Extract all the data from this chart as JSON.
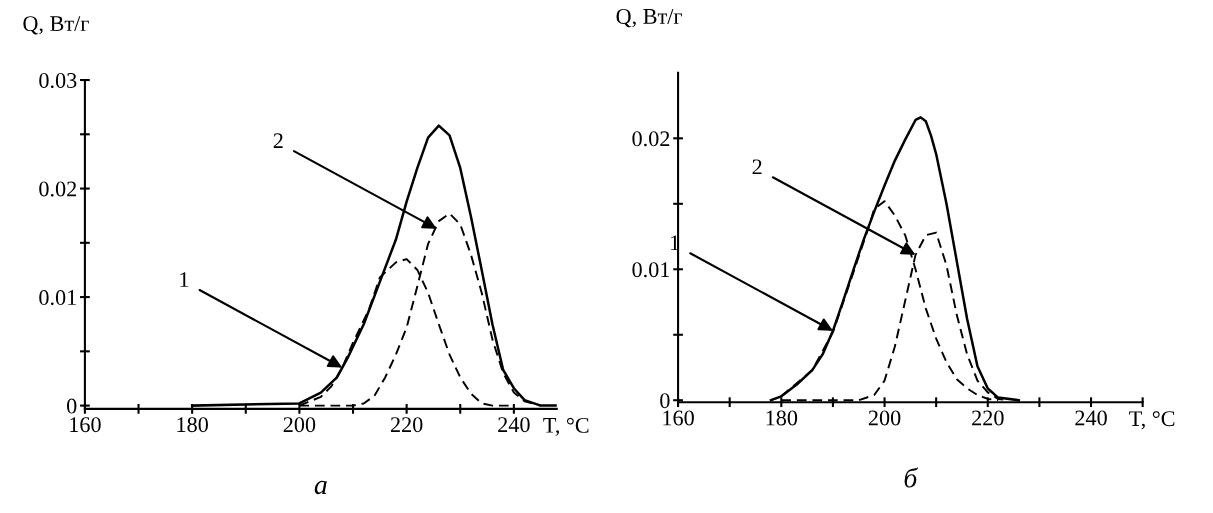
{
  "chart_data": [
    {
      "type": "line",
      "title": "а",
      "xlabel": "T, °C",
      "ylabel": "Q, Вт/г",
      "xlim": [
        160,
        248
      ],
      "xticks": [
        160,
        {
          "value": 170,
          "label": null
        },
        180,
        {
          "value": 190,
          "label": null
        },
        200,
        {
          "value": 210,
          "label": null
        },
        220,
        {
          "value": 230,
          "label": null
        },
        240
      ],
      "ylim": [
        -0.0003,
        0.03
      ],
      "yticks": [
        0,
        {
          "value": 0.005,
          "label": null
        },
        0.01,
        {
          "value": 0.015,
          "label": null
        },
        0.02,
        {
          "value": 0.025,
          "label": null
        },
        0.03
      ],
      "series": [
        {
          "color": "#000000",
          "line_style": "solid",
          "x": [
            180,
            200,
            204,
            207,
            209,
            212,
            215,
            218,
            220,
            222,
            224,
            226,
            228,
            230,
            232,
            234,
            236,
            238,
            240,
            242,
            245,
            248
          ],
          "values": [
            0,
            0.0002,
            0.0012,
            0.0026,
            0.0044,
            0.0075,
            0.0114,
            0.0153,
            0.0188,
            0.0219,
            0.0247,
            0.0258,
            0.0249,
            0.0219,
            0.0174,
            0.0125,
            0.0075,
            0.0033,
            0.0016,
            0.0005,
            0,
            0
          ]
        },
        {
          "color": "#000000",
          "line_style": "dashed",
          "x": [
            200,
            204,
            206,
            208,
            210,
            213,
            215,
            218,
            220,
            222,
            224,
            226,
            228,
            230,
            232,
            234,
            236,
            240
          ],
          "values": [
            0,
            0.0008,
            0.0018,
            0.0035,
            0.0058,
            0.0089,
            0.0118,
            0.0132,
            0.0135,
            0.0125,
            0.0104,
            0.0075,
            0.0047,
            0.0026,
            0.0011,
            0.0002,
            0,
            0
          ]
        },
        {
          "color": "#000000",
          "line_style": "dashed",
          "x": [
            200,
            210,
            212,
            214,
            216,
            218,
            220,
            222,
            224,
            226,
            228,
            230,
            232,
            234,
            236,
            238,
            240,
            242,
            245
          ],
          "values": [
            0,
            0,
            0.0002,
            0.0009,
            0.0026,
            0.0047,
            0.0072,
            0.011,
            0.0149,
            0.017,
            0.0177,
            0.0167,
            0.0139,
            0.0104,
            0.0061,
            0.003,
            0.0012,
            0.0004,
            0
          ]
        }
      ],
      "annotations": [
        {
          "text": "1",
          "x": 208,
          "y": 0.0035
        },
        {
          "text": "2",
          "x": 225.6,
          "y": 0.0163
        }
      ]
    },
    {
      "type": "line",
      "title": "б",
      "xlabel": "T, °C",
      "ylabel": "Q, Вт/г",
      "xlim": [
        160,
        250
      ],
      "xticks": [
        160,
        {
          "value": 170,
          "label": null
        },
        180,
        {
          "value": 190,
          "label": null
        },
        200,
        {
          "value": 210,
          "label": null
        },
        220,
        {
          "value": 230,
          "label": null
        },
        240,
        {
          "value": 250,
          "label": null
        }
      ],
      "ylim": [
        -0.00015,
        0.025
      ],
      "yticks": [
        0,
        {
          "value": 0.005,
          "label": null
        },
        0.01,
        {
          "value": 0.015,
          "label": null
        },
        0.02
      ],
      "series": [
        {
          "color": "#000000",
          "line_style": "solid",
          "x": [
            178,
            180,
            183,
            186,
            188,
            190,
            192,
            194,
            196,
            198,
            200,
            202,
            204,
            206,
            207,
            208,
            209,
            210,
            212,
            214,
            216,
            218,
            220,
            222,
            226
          ],
          "values": [
            0,
            0.0003,
            0.0012,
            0.0023,
            0.0035,
            0.0053,
            0.0076,
            0.01,
            0.0123,
            0.0144,
            0.0164,
            0.0183,
            0.0199,
            0.0214,
            0.0216,
            0.0213,
            0.0202,
            0.0188,
            0.015,
            0.0106,
            0.0062,
            0.0026,
            0.0009,
            0.0002,
            0
          ]
        },
        {
          "color": "#000000",
          "line_style": "dashed",
          "x": [
            180,
            186,
            190,
            194,
            197,
            198,
            200,
            202,
            204,
            206,
            208,
            210,
            212,
            214,
            216,
            218,
            220,
            222
          ],
          "values": [
            0.0003,
            0.0023,
            0.0052,
            0.0098,
            0.0133,
            0.0146,
            0.0152,
            0.0141,
            0.0126,
            0.01,
            0.007,
            0.0047,
            0.0029,
            0.0016,
            0.0009,
            0.0004,
            0.0001,
            0
          ]
        },
        {
          "color": "#000000",
          "line_style": "dashed",
          "x": [
            180,
            195,
            198,
            200,
            202,
            204,
            206,
            208,
            210,
            212,
            214,
            216,
            218,
            220,
            222,
            224
          ],
          "values": [
            0,
            0,
            0.0004,
            0.0015,
            0.0041,
            0.0076,
            0.0111,
            0.0126,
            0.0128,
            0.0103,
            0.0065,
            0.0035,
            0.0015,
            0.0006,
            0.0001,
            0
          ]
        }
      ],
      "annotations": [
        {
          "text": "1",
          "x": 190,
          "y": 0.0053
        },
        {
          "text": "2",
          "x": 206,
          "y": 0.0111
        }
      ]
    }
  ]
}
